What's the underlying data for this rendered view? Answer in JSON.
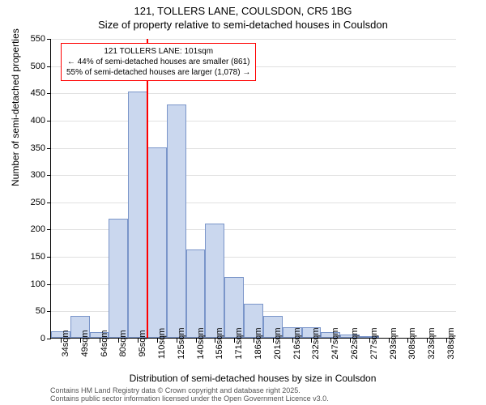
{
  "title": {
    "line1": "121, TOLLERS LANE, COULSDON, CR5 1BG",
    "line2": "Size of property relative to semi-detached houses in Coulsdon"
  },
  "chart": {
    "type": "histogram",
    "ylabel": "Number of semi-detached properties",
    "xlabel": "Distribution of semi-detached houses by size in Coulsdon",
    "ylim": [
      0,
      550
    ],
    "ytick_step": 50,
    "yticks": [
      0,
      50,
      100,
      150,
      200,
      250,
      300,
      350,
      400,
      450,
      500,
      550
    ],
    "xticks": [
      "34sqm",
      "49sqm",
      "64sqm",
      "80sqm",
      "95sqm",
      "110sqm",
      "125sqm",
      "140sqm",
      "156sqm",
      "171sqm",
      "186sqm",
      "201sqm",
      "216sqm",
      "232sqm",
      "247sqm",
      "262sqm",
      "277sqm",
      "293sqm",
      "308sqm",
      "323sqm",
      "338sqm"
    ],
    "bars": [
      12,
      40,
      10,
      218,
      452,
      350,
      428,
      162,
      210,
      112,
      62,
      40,
      20,
      20,
      10,
      6,
      3,
      0,
      0,
      0,
      0
    ],
    "bar_color": "#cad7ee",
    "bar_border_color": "#7a95c9",
    "background_color": "#ffffff",
    "grid_color": "#e0e0e0",
    "axis_color": "#000000",
    "marker": {
      "position_index": 4.45,
      "color": "#ff0000",
      "box": {
        "line1": "121 TOLLERS LANE: 101sqm",
        "line2": "← 44% of semi-detached houses are smaller (861)",
        "line3": "55% of semi-detached houses are larger (1,078) →"
      }
    }
  },
  "attribution": {
    "line1": "Contains HM Land Registry data © Crown copyright and database right 2025.",
    "line2": "Contains public sector information licensed under the Open Government Licence v3.0."
  }
}
